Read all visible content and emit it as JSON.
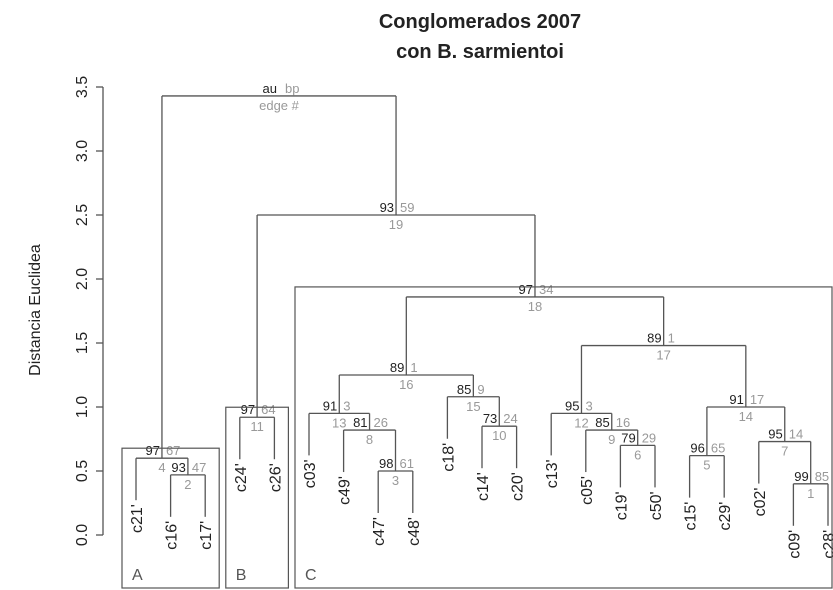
{
  "chart_data": {
    "type": "dendrogram",
    "title": [
      "Conglomerados 2007",
      "con B. sarmientoi"
    ],
    "y_label": "Distancia Euclidea",
    "ylim": [
      0,
      3.5
    ],
    "yticks": [
      {
        "value": 0,
        "label": "0.0"
      },
      {
        "value": 0.5,
        "label": "0.5"
      },
      {
        "value": 1,
        "label": "1.0"
      },
      {
        "value": 1.5,
        "label": "1.5"
      },
      {
        "value": 2,
        "label": "2.0"
      },
      {
        "value": 2.5,
        "label": "2.5"
      },
      {
        "value": 3,
        "label": "3.0"
      },
      {
        "value": 3.5,
        "label": "3.5"
      }
    ],
    "legend": {
      "au": "au",
      "bp": "bp",
      "edge": "edge #"
    },
    "leaves": [
      "c21'",
      "c16'",
      "c17'",
      "c24'",
      "c26'",
      "c03'",
      "c49'",
      "c47'",
      "c48'",
      "c18'",
      "c14'",
      "c20'",
      "c13'",
      "c05'",
      "c19'",
      "c50'",
      "c15'",
      "c29'",
      "c02'",
      "c09'",
      "c28'"
    ],
    "merges": [
      {
        "children": [
          -2,
          -3
        ],
        "height": 0.47,
        "au": 93,
        "bp": 47,
        "edge": 2
      },
      {
        "children": [
          -1,
          1
        ],
        "height": 0.6,
        "au": 97,
        "bp": 67,
        "edge": 4
      },
      {
        "children": [
          -4,
          -5
        ],
        "height": 0.92,
        "au": 97,
        "bp": 64,
        "edge": 11
      },
      {
        "children": [
          -8,
          -9
        ],
        "height": 0.5,
        "au": 98,
        "bp": 61,
        "edge": 3
      },
      {
        "children": [
          -7,
          4
        ],
        "height": 0.82,
        "au": 81,
        "bp": 26,
        "edge": 8
      },
      {
        "children": [
          -6,
          5
        ],
        "height": 0.95,
        "au": 91,
        "bp": 3,
        "edge": 13
      },
      {
        "children": [
          -11,
          -12
        ],
        "height": 0.85,
        "au": 73,
        "bp": 24,
        "edge": 10
      },
      {
        "children": [
          -10,
          7
        ],
        "height": 1.08,
        "au": 85,
        "bp": 9,
        "edge": 15
      },
      {
        "children": [
          6,
          8
        ],
        "height": 1.25,
        "au": 89,
        "bp": 1,
        "edge": 16
      },
      {
        "children": [
          -15,
          -16
        ],
        "height": 0.7,
        "au": 79,
        "bp": 29,
        "edge": 6
      },
      {
        "children": [
          -14,
          10
        ],
        "height": 0.82,
        "au": 85,
        "bp": 16,
        "edge": 9
      },
      {
        "children": [
          -13,
          11
        ],
        "height": 0.95,
        "au": 95,
        "bp": 3,
        "edge": 12
      },
      {
        "children": [
          -17,
          -18
        ],
        "height": 0.62,
        "au": 96,
        "bp": 65,
        "edge": 5
      },
      {
        "children": [
          -20,
          -21
        ],
        "height": 0.4,
        "au": 99,
        "bp": 85,
        "edge": 1
      },
      {
        "children": [
          -19,
          14
        ],
        "height": 0.73,
        "au": 95,
        "bp": 14,
        "edge": 7
      },
      {
        "children": [
          13,
          15
        ],
        "height": 1.0,
        "au": 91,
        "bp": 17,
        "edge": 14
      },
      {
        "children": [
          12,
          16
        ],
        "height": 1.48,
        "au": 89,
        "bp": 1,
        "edge": 17
      },
      {
        "children": [
          9,
          17
        ],
        "height": 1.86,
        "au": 97,
        "bp": 34,
        "edge": 18
      },
      {
        "children": [
          3,
          18
        ],
        "height": 2.5,
        "au": 93,
        "bp": 59,
        "edge": 19
      },
      {
        "children": [
          2,
          19
        ],
        "height": 3.43
      }
    ],
    "clusters": [
      {
        "label": "A",
        "leaves": [
          0,
          2
        ]
      },
      {
        "label": "B",
        "leaves": [
          3,
          4
        ]
      },
      {
        "label": "C",
        "leaves": [
          5,
          20
        ]
      }
    ]
  }
}
